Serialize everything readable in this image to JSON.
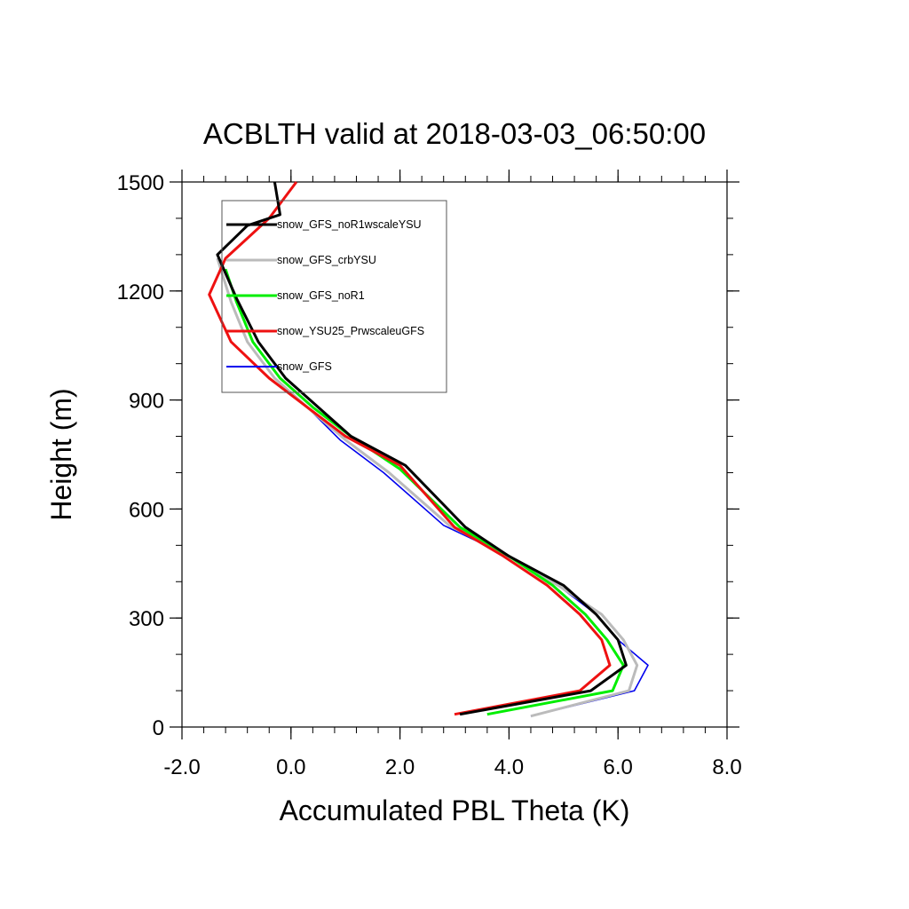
{
  "chart_data": {
    "type": "line",
    "title": "ACBLTH valid at 2018-03-03_06:50:00",
    "xlabel": "Accumulated PBL Theta (K)",
    "ylabel": "Height (m)",
    "xlim": [
      -2.0,
      8.0
    ],
    "ylim": [
      0,
      1500
    ],
    "xticks": [
      -2.0,
      0.0,
      2.0,
      4.0,
      6.0,
      8.0
    ],
    "xtick_labels": [
      "-2.0",
      "0.0",
      "2.0",
      "4.0",
      "6.0",
      "8.0"
    ],
    "yticks": [
      0,
      300,
      600,
      900,
      1200,
      1500
    ],
    "ytick_labels": [
      "0",
      "300",
      "600",
      "900",
      "1200",
      "1500"
    ],
    "grid": false,
    "legend_position": "top-left",
    "series": [
      {
        "name": "snow_GFS_noR1wscaleYSU",
        "color": "#000000",
        "points": [
          [
            3.1,
            35
          ],
          [
            5.5,
            100
          ],
          [
            6.15,
            170
          ],
          [
            6.0,
            240
          ],
          [
            5.6,
            310
          ],
          [
            5.0,
            390
          ],
          [
            4.0,
            470
          ],
          [
            3.2,
            550
          ],
          [
            2.1,
            720
          ],
          [
            1.1,
            800
          ],
          [
            0.5,
            880
          ],
          [
            -0.1,
            960
          ],
          [
            -0.6,
            1060
          ],
          [
            -1.0,
            1180
          ],
          [
            -1.35,
            1300
          ],
          [
            -0.8,
            1380
          ],
          [
            -0.2,
            1410
          ],
          [
            -0.3,
            1500
          ]
        ]
      },
      {
        "name": "snow_GFS_crbYSU",
        "color": "#bbbbbb",
        "points": [
          [
            4.4,
            30
          ],
          [
            6.2,
            100
          ],
          [
            6.35,
            170
          ],
          [
            6.1,
            240
          ],
          [
            5.7,
            310
          ],
          [
            4.9,
            390
          ],
          [
            4.0,
            470
          ],
          [
            2.9,
            555
          ],
          [
            1.8,
            700
          ],
          [
            1.0,
            790
          ],
          [
            0.3,
            880
          ],
          [
            -0.3,
            960
          ],
          [
            -0.8,
            1060
          ],
          [
            -1.1,
            1170
          ],
          [
            -1.35,
            1290
          ]
        ]
      },
      {
        "name": "snow_GFS_noR1",
        "color": "#00ee00",
        "points": [
          [
            3.6,
            35
          ],
          [
            5.9,
            100
          ],
          [
            6.1,
            170
          ],
          [
            5.8,
            240
          ],
          [
            5.4,
            310
          ],
          [
            4.8,
            390
          ],
          [
            4.0,
            470
          ],
          [
            3.1,
            550
          ],
          [
            2.0,
            710
          ],
          [
            1.1,
            800
          ],
          [
            0.4,
            880
          ],
          [
            -0.2,
            960
          ],
          [
            -0.7,
            1060
          ],
          [
            -1.0,
            1170
          ],
          [
            -1.2,
            1260
          ]
        ]
      },
      {
        "name": "snow_YSU25_PrwscaleuGFS",
        "color": "#ee1111",
        "points": [
          [
            3.0,
            35
          ],
          [
            5.3,
            100
          ],
          [
            5.85,
            170
          ],
          [
            5.7,
            240
          ],
          [
            5.3,
            310
          ],
          [
            4.7,
            390
          ],
          [
            3.9,
            470
          ],
          [
            3.0,
            550
          ],
          [
            2.0,
            720
          ],
          [
            1.0,
            800
          ],
          [
            0.3,
            880
          ],
          [
            -0.4,
            960
          ],
          [
            -1.1,
            1060
          ],
          [
            -1.5,
            1190
          ],
          [
            -1.2,
            1290
          ],
          [
            -0.4,
            1400
          ],
          [
            0.1,
            1500
          ]
        ]
      },
      {
        "name": "snow_GFS",
        "color": "#0000ee",
        "points": [
          [
            4.4,
            30
          ],
          [
            6.3,
            100
          ],
          [
            6.55,
            170
          ],
          [
            6.0,
            240
          ],
          [
            5.6,
            310
          ],
          [
            4.9,
            390
          ],
          [
            4.0,
            470
          ],
          [
            2.8,
            555
          ],
          [
            1.7,
            700
          ],
          [
            0.9,
            790
          ],
          [
            0.3,
            880
          ],
          [
            -0.3,
            960
          ],
          [
            -0.8,
            1060
          ],
          [
            -1.1,
            1170
          ],
          [
            -1.35,
            1290
          ]
        ]
      }
    ]
  }
}
